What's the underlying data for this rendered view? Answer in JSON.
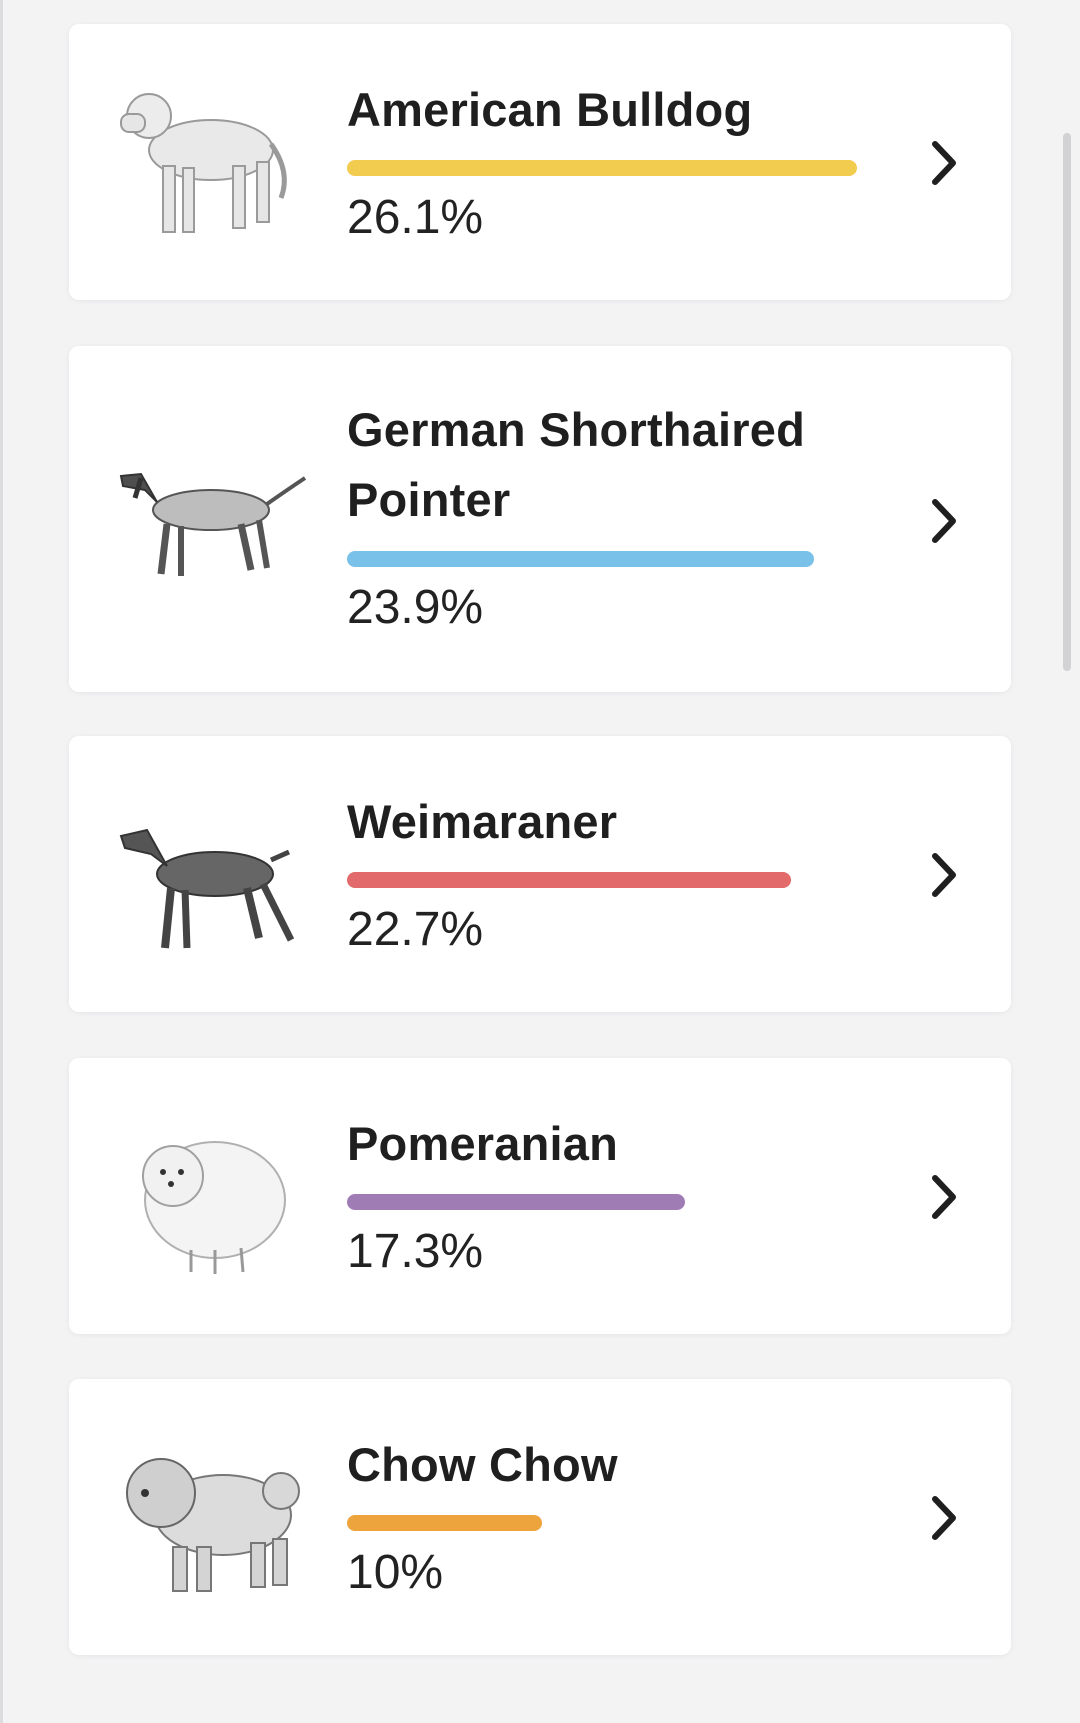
{
  "breeds": [
    {
      "name": "American Bulldog",
      "percent": "26.1%",
      "value": 26.1,
      "color": "#f2cc4f",
      "icon": "american-bulldog-illustration"
    },
    {
      "name": "German Shorthaired Pointer",
      "name_lines": [
        "German Shorthaired",
        "Pointer"
      ],
      "percent": "23.9%",
      "value": 23.9,
      "color": "#79c1e8",
      "icon": "german-shorthaired-pointer-illustration"
    },
    {
      "name": "Weimaraner",
      "percent": "22.7%",
      "value": 22.7,
      "color": "#e36a6a",
      "icon": "weimaraner-illustration"
    },
    {
      "name": "Pomeranian",
      "percent": "17.3%",
      "value": 17.3,
      "color": "#a07cb4",
      "icon": "pomeranian-illustration"
    },
    {
      "name": "Chow Chow",
      "percent": "10%",
      "value": 10,
      "color": "#eda43c",
      "icon": "chow-chow-illustration"
    }
  ]
}
